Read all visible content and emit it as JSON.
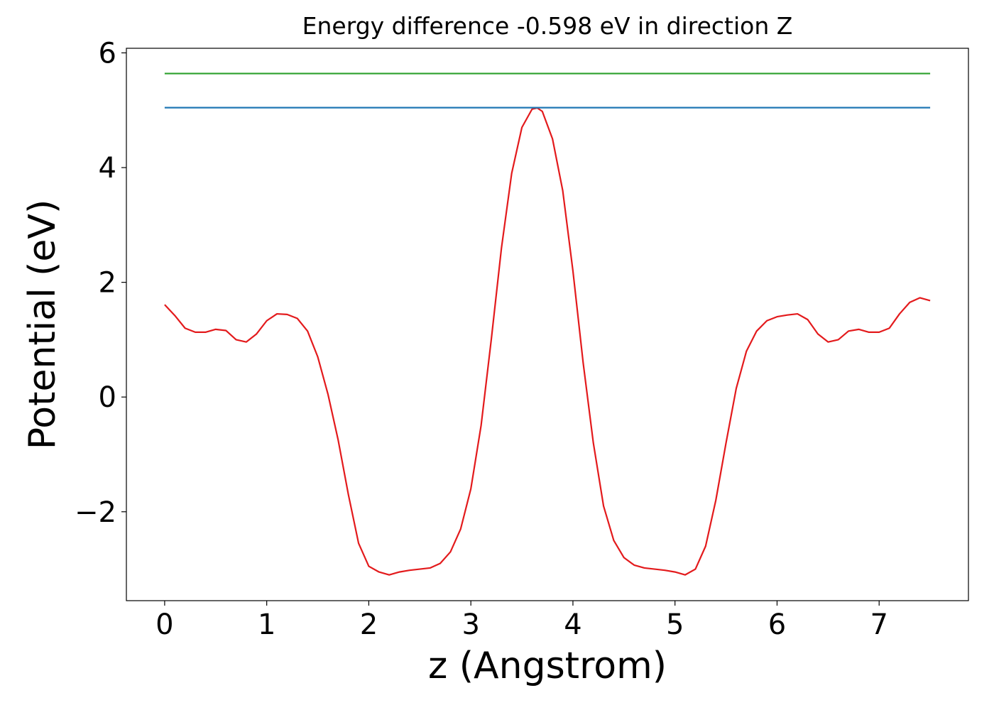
{
  "chart_data": {
    "type": "line",
    "title": "Energy difference -0.598 eV in direction Z",
    "x_label": "z (Angstrom)",
    "y_label": "Potential (eV)",
    "xlim": [
      -0.375,
      7.875
    ],
    "ylim": [
      -3.55,
      6.08
    ],
    "xticks": [
      0,
      1,
      2,
      3,
      4,
      5,
      6,
      7
    ],
    "yticks": [
      {
        "value": -2,
        "label": "−2"
      },
      0,
      2,
      4,
      6
    ],
    "grid": false,
    "series": [
      {
        "color": "#e31a1c",
        "x": [
          0,
          0.1,
          0.2,
          0.3,
          0.4,
          0.5,
          0.6,
          0.7,
          0.8,
          0.9,
          1.0,
          1.1,
          1.2,
          1.3,
          1.4,
          1.5,
          1.6,
          1.7,
          1.8,
          1.9,
          2.0,
          2.1,
          2.2,
          2.3,
          2.4,
          2.5,
          2.6,
          2.7,
          2.8,
          2.9,
          3.0,
          3.1,
          3.2,
          3.3,
          3.4,
          3.5,
          3.6,
          3.65,
          3.7,
          3.8,
          3.9,
          4.0,
          4.1,
          4.2,
          4.3,
          4.4,
          4.5,
          4.6,
          4.7,
          4.8,
          4.9,
          5.0,
          5.1,
          5.2,
          5.3,
          5.4,
          5.5,
          5.6,
          5.7,
          5.8,
          5.9,
          6.0,
          6.1,
          6.2,
          6.3,
          6.4,
          6.5,
          6.6,
          6.7,
          6.8,
          6.9,
          7.0,
          7.1,
          7.2,
          7.3,
          7.4,
          7.5
        ],
        "values": [
          1.61,
          1.42,
          1.2,
          1.13,
          1.13,
          1.18,
          1.16,
          1.0,
          0.96,
          1.1,
          1.33,
          1.45,
          1.44,
          1.37,
          1.15,
          0.7,
          0.05,
          -0.75,
          -1.7,
          -2.55,
          -2.95,
          -3.05,
          -3.1,
          -3.05,
          -3.02,
          -3.0,
          -2.98,
          -2.9,
          -2.7,
          -2.3,
          -1.6,
          -0.5,
          1.0,
          2.6,
          3.9,
          4.7,
          5.02,
          5.04,
          4.98,
          4.5,
          3.6,
          2.2,
          0.6,
          -0.8,
          -1.9,
          -2.5,
          -2.8,
          -2.93,
          -2.98,
          -3.0,
          -3.02,
          -3.05,
          -3.1,
          -3.0,
          -2.6,
          -1.8,
          -0.8,
          0.15,
          0.8,
          1.15,
          1.33,
          1.4,
          1.43,
          1.45,
          1.35,
          1.1,
          0.96,
          1.0,
          1.15,
          1.18,
          1.13,
          1.13,
          1.2,
          1.45,
          1.65,
          1.73,
          1.68
        ]
      },
      {
        "color": "#1f77b4",
        "x": [
          0,
          7.5
        ],
        "values": [
          5.045,
          5.045
        ]
      },
      {
        "color": "#2ca02c",
        "x": [
          0,
          7.5
        ],
        "values": [
          5.64,
          5.64
        ]
      }
    ]
  }
}
